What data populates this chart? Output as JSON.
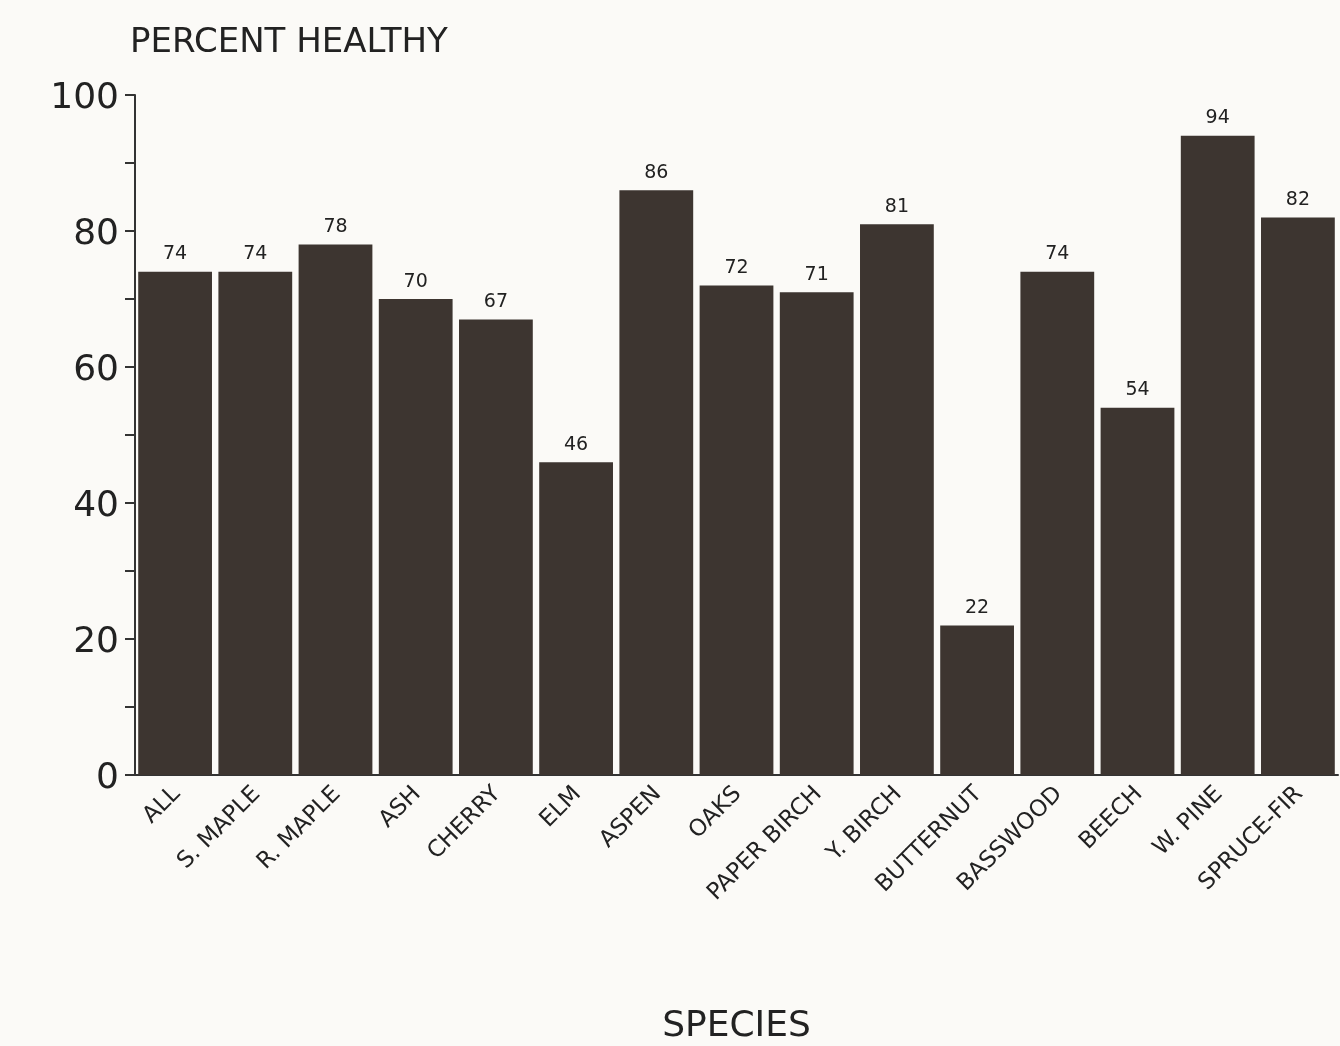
{
  "chart_data": {
    "type": "bar",
    "ylabel": "PERCENT HEALTHY",
    "xlabel": "SPECIES",
    "categories": [
      "ALL",
      "S. MAPLE",
      "R. MAPLE",
      "ASH",
      "CHERRY",
      "ELM",
      "ASPEN",
      "OAKS",
      "PAPER BIRCH",
      "Y. BIRCH",
      "BUTTERNUT",
      "BASSWOOD",
      "BEECH",
      "W. PINE",
      "SPRUCE-FIR"
    ],
    "values": [
      74,
      74,
      78,
      70,
      67,
      46,
      86,
      72,
      71,
      81,
      22,
      74,
      54,
      94,
      82
    ],
    "color": "#3d3530",
    "ylim": [
      0,
      100
    ],
    "yticks": [
      0,
      {
        "value": 10,
        "label": null
      },
      20,
      {
        "value": 30,
        "label": null
      },
      40,
      {
        "value": 50,
        "label": null
      },
      60,
      {
        "value": 70,
        "label": null
      },
      80,
      {
        "value": 90,
        "label": null
      },
      100
    ],
    "data_labels": true
  }
}
